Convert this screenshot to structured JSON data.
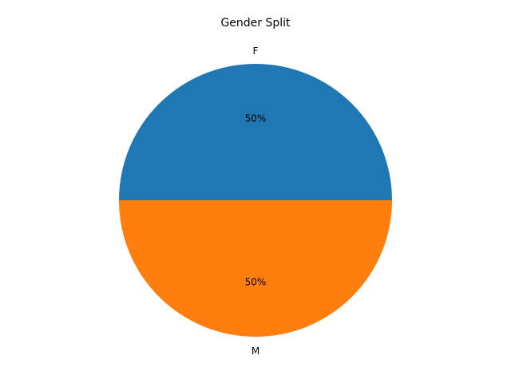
{
  "chart_data": {
    "type": "pie",
    "title": "Gender Split",
    "slices": [
      {
        "label": "F",
        "value": 50,
        "pct_label": "50%",
        "color": "#1f77b4"
      },
      {
        "label": "M",
        "value": 50,
        "pct_label": "50%",
        "color": "#ff7f0e"
      }
    ],
    "legend": "none"
  }
}
